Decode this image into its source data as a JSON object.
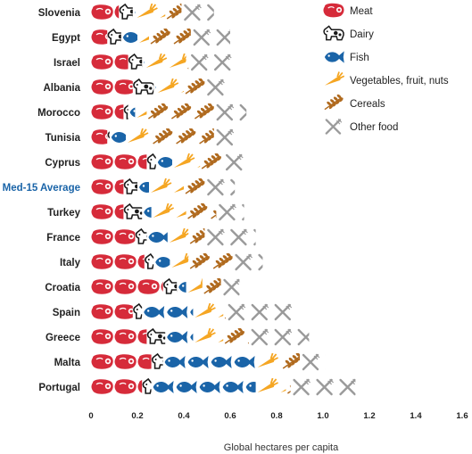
{
  "colors": {
    "meat": "#d62b3a",
    "dairy": "#1a1a1a",
    "fish": "#1a64a8",
    "vegetables": "#f5a623",
    "cereals": "#b06a1e",
    "other": "#9a9a9a",
    "avg_label": "#1a64a8"
  },
  "chart_data": {
    "type": "bar",
    "orientation": "horizontal",
    "stacked": true,
    "xlabel": "Global hectares per capita",
    "xlim": [
      0,
      1.6
    ],
    "x_ticks": [
      "0",
      "0.2",
      "0.4",
      "0.6",
      "0.8",
      "1.0",
      "1.2",
      "1.4",
      "1.6"
    ],
    "legend_position": "top-right",
    "categories": [
      "Slovenia",
      "Egypt",
      "Israel",
      "Albania",
      "Morocco",
      "Tunisia",
      "Cyprus",
      "Med-15 Average",
      "Turkey",
      "France",
      "Italy",
      "Croatia",
      "Spain",
      "Greece",
      "Malta",
      "Portugal"
    ],
    "highlight_category": "Med-15 Average",
    "series": [
      {
        "name": "Meat",
        "key": "meat",
        "icon": "steak-icon",
        "values": [
          0.12,
          0.07,
          0.16,
          0.18,
          0.14,
          0.07,
          0.24,
          0.14,
          0.14,
          0.19,
          0.23,
          0.31,
          0.18,
          0.24,
          0.26,
          0.22
        ]
      },
      {
        "name": "Dairy",
        "key": "dairy",
        "icon": "cow-icon",
        "values": [
          0.06,
          0.06,
          0.06,
          0.09,
          0.02,
          0.01,
          0.04,
          0.06,
          0.08,
          0.05,
          0.04,
          0.06,
          0.04,
          0.08,
          0.05,
          0.04
        ]
      },
      {
        "name": "Fish",
        "key": "fish",
        "icon": "fish-icon",
        "values": [
          0.01,
          0.07,
          0.01,
          0.01,
          0.03,
          0.07,
          0.07,
          0.05,
          0.04,
          0.09,
          0.07,
          0.04,
          0.22,
          0.12,
          0.4,
          0.45
        ]
      },
      {
        "name": "Vegetables, fruit, nuts",
        "key": "vegetables",
        "icon": "carrot-icon",
        "values": [
          0.13,
          0.05,
          0.18,
          0.12,
          0.05,
          0.11,
          0.12,
          0.15,
          0.15,
          0.09,
          0.08,
          0.07,
          0.13,
          0.13,
          0.11,
          0.13
        ]
      },
      {
        "name": "Cereals",
        "key": "cereals",
        "icon": "wheat-icon",
        "values": [
          0.07,
          0.18,
          0.01,
          0.09,
          0.29,
          0.27,
          0.1,
          0.09,
          0.13,
          0.07,
          0.19,
          0.08,
          0.01,
          0.11,
          0.08,
          0.02
        ]
      },
      {
        "name": "Other food",
        "key": "other",
        "icon": "fork-knife-icon",
        "values": [
          0.14,
          0.17,
          0.2,
          0.1,
          0.14,
          0.11,
          0.1,
          0.13,
          0.12,
          0.22,
          0.13,
          0.08,
          0.29,
          0.26,
          0.11,
          0.28
        ]
      }
    ]
  }
}
